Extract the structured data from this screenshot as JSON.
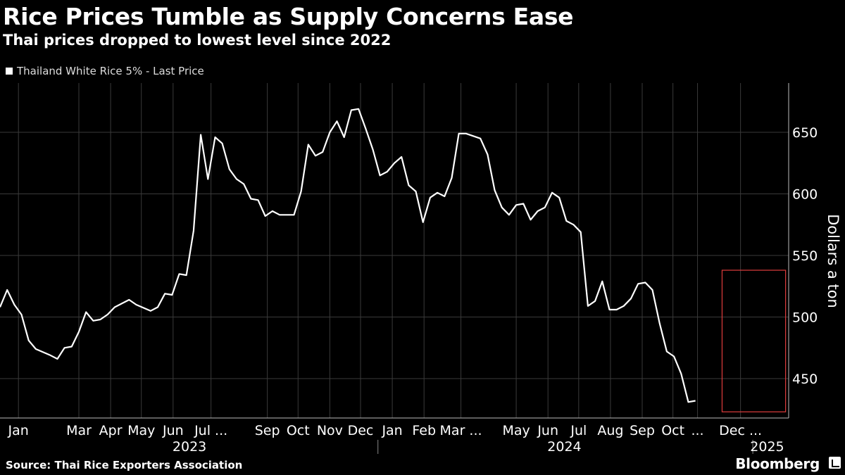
{
  "title": "Rice Prices Tumble as Supply Concerns Ease",
  "subtitle": "Thai prices dropped to lowest level since 2022",
  "legend": "Thailand White Rice 5% - Last Price",
  "source": "Source: Thai Rice Exporters Association",
  "brand": "Bloomberg",
  "colors": {
    "background": "#000000",
    "line": "#ffffff",
    "grid": "#3a3a3a",
    "highlight": "#e03c3c"
  },
  "chart_data": {
    "type": "line",
    "title": "Rice Prices Tumble as Supply Concerns Ease",
    "subtitle": "Thai prices dropped to lowest level since 2022",
    "ylabel": "Dollars a ton",
    "ylim": [
      418,
      690
    ],
    "yticks": [
      450,
      500,
      550,
      600,
      650
    ],
    "grid": true,
    "legend_position": "top-left",
    "xrange": [
      "2022-12-28",
      "2025-02-05"
    ],
    "month_labels": [
      {
        "label": "Jan",
        "date": "2023-01-15"
      },
      {
        "label": "Mar",
        "date": "2023-03-15"
      },
      {
        "label": "Apr",
        "date": "2023-04-15"
      },
      {
        "label": "May",
        "date": "2023-05-15"
      },
      {
        "label": "Jun",
        "date": "2023-06-15"
      },
      {
        "label": "Jul ...",
        "date": "2023-07-22"
      },
      {
        "label": "Sep",
        "date": "2023-09-15"
      },
      {
        "label": "Oct",
        "date": "2023-10-15"
      },
      {
        "label": "Nov",
        "date": "2023-11-15"
      },
      {
        "label": "Dec",
        "date": "2023-12-15"
      },
      {
        "label": "Jan",
        "date": "2024-01-15"
      },
      {
        "label": "Feb",
        "date": "2024-02-15"
      },
      {
        "label": "Mar ...",
        "date": "2024-03-22"
      },
      {
        "label": "May",
        "date": "2024-05-15"
      },
      {
        "label": "Jun",
        "date": "2024-06-15"
      },
      {
        "label": "Jul",
        "date": "2024-07-15"
      },
      {
        "label": "Aug",
        "date": "2024-08-15"
      },
      {
        "label": "Sep",
        "date": "2024-09-15"
      },
      {
        "label": "Oct",
        "date": "2024-10-15"
      },
      {
        "label": "...",
        "date": "2024-11-08"
      },
      {
        "label": "Dec ...",
        "date": "2024-12-20"
      }
    ],
    "year_labels": [
      {
        "label": "2023",
        "date": "2023-07-01"
      },
      {
        "label": "2024",
        "date": "2024-07-01"
      },
      {
        "label": "2025",
        "date": "2025-01-15"
      }
    ],
    "highlight": {
      "x": [
        "2024-12-02",
        "2025-02-02"
      ],
      "y": [
        423,
        538
      ]
    },
    "series": [
      {
        "name": "Thailand White Rice 5% - Last Price",
        "points": [
          [
            "2022-12-28",
            508
          ],
          [
            "2023-01-04",
            522
          ],
          [
            "2023-01-11",
            510
          ],
          [
            "2023-01-18",
            502
          ],
          [
            "2023-01-25",
            481
          ],
          [
            "2023-02-01",
            474
          ],
          [
            "2023-02-15",
            469
          ],
          [
            "2023-02-22",
            466
          ],
          [
            "2023-03-01",
            475
          ],
          [
            "2023-03-08",
            476
          ],
          [
            "2023-03-15",
            488
          ],
          [
            "2023-03-22",
            504
          ],
          [
            "2023-03-29",
            497
          ],
          [
            "2023-04-05",
            498
          ],
          [
            "2023-04-12",
            502
          ],
          [
            "2023-04-19",
            508
          ],
          [
            "2023-05-03",
            514
          ],
          [
            "2023-05-10",
            510
          ],
          [
            "2023-05-24",
            505
          ],
          [
            "2023-05-31",
            508
          ],
          [
            "2023-06-07",
            519
          ],
          [
            "2023-06-14",
            518
          ],
          [
            "2023-06-21",
            535
          ],
          [
            "2023-06-28",
            534
          ],
          [
            "2023-07-05",
            570
          ],
          [
            "2023-07-12",
            648
          ],
          [
            "2023-07-19",
            612
          ],
          [
            "2023-07-26",
            646
          ],
          [
            "2023-08-02",
            641
          ],
          [
            "2023-08-09",
            620
          ],
          [
            "2023-08-16",
            612
          ],
          [
            "2023-08-23",
            608
          ],
          [
            "2023-08-30",
            596
          ],
          [
            "2023-09-06",
            595
          ],
          [
            "2023-09-13",
            582
          ],
          [
            "2023-09-20",
            586
          ],
          [
            "2023-09-27",
            583
          ],
          [
            "2023-10-11",
            583
          ],
          [
            "2023-10-18",
            602
          ],
          [
            "2023-10-25",
            640
          ],
          [
            "2023-11-01",
            631
          ],
          [
            "2023-11-08",
            634
          ],
          [
            "2023-11-15",
            650
          ],
          [
            "2023-11-22",
            659
          ],
          [
            "2023-11-29",
            646
          ],
          [
            "2023-12-06",
            668
          ],
          [
            "2023-12-13",
            669
          ],
          [
            "2023-12-20",
            653
          ],
          [
            "2023-12-27",
            636
          ],
          [
            "2024-01-03",
            615
          ],
          [
            "2024-01-10",
            618
          ],
          [
            "2024-01-17",
            625
          ],
          [
            "2024-01-24",
            630
          ],
          [
            "2024-01-31",
            607
          ],
          [
            "2024-02-07",
            602
          ],
          [
            "2024-02-14",
            577
          ],
          [
            "2024-02-21",
            597
          ],
          [
            "2024-02-28",
            601
          ],
          [
            "2024-03-06",
            598
          ],
          [
            "2024-03-13",
            613
          ],
          [
            "2024-03-20",
            649
          ],
          [
            "2024-03-27",
            649
          ],
          [
            "2024-04-10",
            645
          ],
          [
            "2024-04-17",
            632
          ],
          [
            "2024-04-24",
            603
          ],
          [
            "2024-05-01",
            589
          ],
          [
            "2024-05-08",
            583
          ],
          [
            "2024-05-15",
            591
          ],
          [
            "2024-05-22",
            592
          ],
          [
            "2024-05-29",
            579
          ],
          [
            "2024-06-05",
            586
          ],
          [
            "2024-06-12",
            589
          ],
          [
            "2024-06-19",
            601
          ],
          [
            "2024-06-26",
            597
          ],
          [
            "2024-07-03",
            578
          ],
          [
            "2024-07-10",
            575
          ],
          [
            "2024-07-17",
            569
          ],
          [
            "2024-07-24",
            509
          ],
          [
            "2024-07-31",
            513
          ],
          [
            "2024-08-07",
            529
          ],
          [
            "2024-08-14",
            506
          ],
          [
            "2024-08-21",
            506
          ],
          [
            "2024-08-28",
            509
          ],
          [
            "2024-09-04",
            515
          ],
          [
            "2024-09-11",
            527
          ],
          [
            "2024-09-18",
            528
          ],
          [
            "2024-09-25",
            522
          ],
          [
            "2024-10-02",
            495
          ],
          [
            "2024-10-09",
            472
          ],
          [
            "2024-10-16",
            468
          ],
          [
            "2024-10-23",
            454
          ],
          [
            "2024-10-30",
            431
          ],
          [
            "2024-11-06",
            432
          ]
        ]
      }
    ]
  }
}
